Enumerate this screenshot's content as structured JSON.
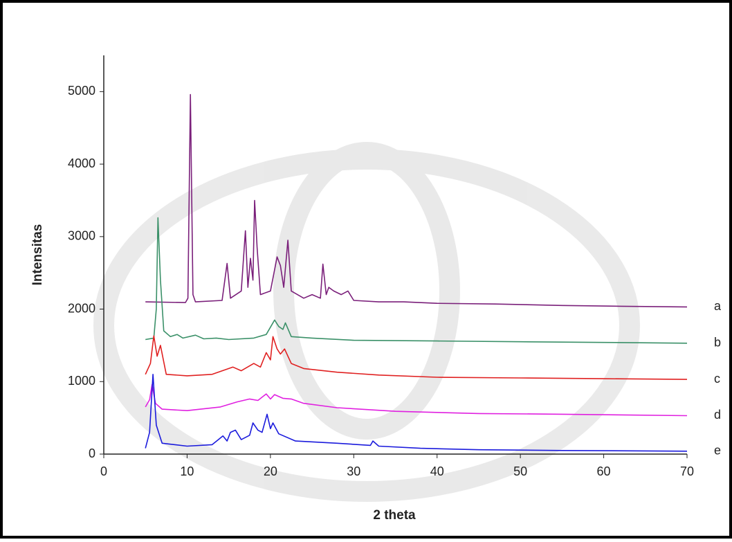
{
  "chart_data": {
    "type": "line",
    "x_label": "2 theta",
    "y_label": "Intensitas",
    "xlim": [
      0,
      70
    ],
    "ylim": [
      0,
      5500
    ],
    "xticks": [
      0,
      10,
      20,
      30,
      40,
      50,
      60,
      70
    ],
    "yticks": [
      0,
      1000,
      2000,
      3000,
      4000,
      5000
    ],
    "series": [
      {
        "name": "a",
        "color": "#7a1f7a",
        "x": [
          5,
          9.8,
          10.1,
          10.4,
          10.7,
          11,
          14.2,
          14.8,
          15.2,
          16.5,
          17,
          17.3,
          17.6,
          17.9,
          18.1,
          18.4,
          18.8,
          20,
          20.8,
          21.2,
          21.6,
          22.1,
          22.5,
          24,
          25,
          26,
          26.3,
          26.7,
          27,
          27.6,
          28.5,
          29.3,
          30,
          33,
          36,
          40,
          47,
          55,
          62,
          70
        ],
        "values": [
          2100,
          2090,
          2150,
          4960,
          2200,
          2100,
          2120,
          2630,
          2150,
          2250,
          3080,
          2300,
          2700,
          2400,
          3500,
          2850,
          2200,
          2250,
          2720,
          2600,
          2300,
          2950,
          2250,
          2150,
          2200,
          2150,
          2620,
          2200,
          2300,
          2250,
          2200,
          2250,
          2120,
          2100,
          2100,
          2080,
          2070,
          2050,
          2040,
          2030
        ]
      },
      {
        "name": "b",
        "color": "#3a9068",
        "x": [
          5,
          6,
          6.3,
          6.5,
          6.8,
          7.2,
          8,
          8.8,
          9.5,
          11,
          12,
          13.5,
          15,
          18,
          19.5,
          20.5,
          21,
          21.5,
          21.8,
          22.5,
          25,
          30,
          40,
          50,
          60,
          70
        ],
        "values": [
          1580,
          1600,
          2000,
          3260,
          2400,
          1700,
          1620,
          1650,
          1600,
          1640,
          1590,
          1600,
          1580,
          1600,
          1650,
          1850,
          1760,
          1720,
          1810,
          1620,
          1600,
          1570,
          1560,
          1550,
          1540,
          1530
        ]
      },
      {
        "name": "c",
        "color": "#e02020",
        "x": [
          5,
          5.6,
          6,
          6.4,
          6.8,
          7.5,
          10,
          13,
          15.5,
          16.5,
          18,
          18.8,
          19.5,
          20,
          20.3,
          20.8,
          21.2,
          21.7,
          22.5,
          24,
          28,
          33,
          40,
          50,
          60,
          70
        ],
        "values": [
          1100,
          1250,
          1630,
          1350,
          1500,
          1100,
          1080,
          1100,
          1200,
          1150,
          1250,
          1200,
          1400,
          1300,
          1620,
          1450,
          1380,
          1450,
          1250,
          1180,
          1130,
          1090,
          1060,
          1050,
          1040,
          1030
        ]
      },
      {
        "name": "d",
        "color": "#e020e0",
        "x": [
          5,
          5.5,
          5.8,
          6.2,
          7,
          10,
          14,
          16,
          17.5,
          18.5,
          19.5,
          20,
          20.5,
          21.5,
          22.5,
          24,
          28,
          35,
          45,
          55,
          70
        ],
        "values": [
          650,
          750,
          960,
          700,
          620,
          600,
          650,
          720,
          760,
          740,
          830,
          760,
          820,
          770,
          760,
          700,
          640,
          590,
          560,
          550,
          530
        ]
      },
      {
        "name": "e",
        "color": "#1a1adc",
        "x": [
          5,
          5.5,
          5.9,
          6.3,
          7,
          10,
          13,
          14.3,
          14.8,
          15.2,
          15.8,
          16.5,
          17.5,
          17.9,
          18.5,
          19,
          19.6,
          20,
          20.3,
          21,
          23,
          28,
          32,
          32.3,
          33,
          38,
          45,
          55,
          70
        ],
        "values": [
          80,
          300,
          1100,
          400,
          150,
          110,
          130,
          250,
          180,
          300,
          330,
          200,
          260,
          430,
          330,
          300,
          550,
          350,
          430,
          280,
          180,
          150,
          120,
          180,
          110,
          80,
          60,
          50,
          40
        ]
      }
    ]
  }
}
